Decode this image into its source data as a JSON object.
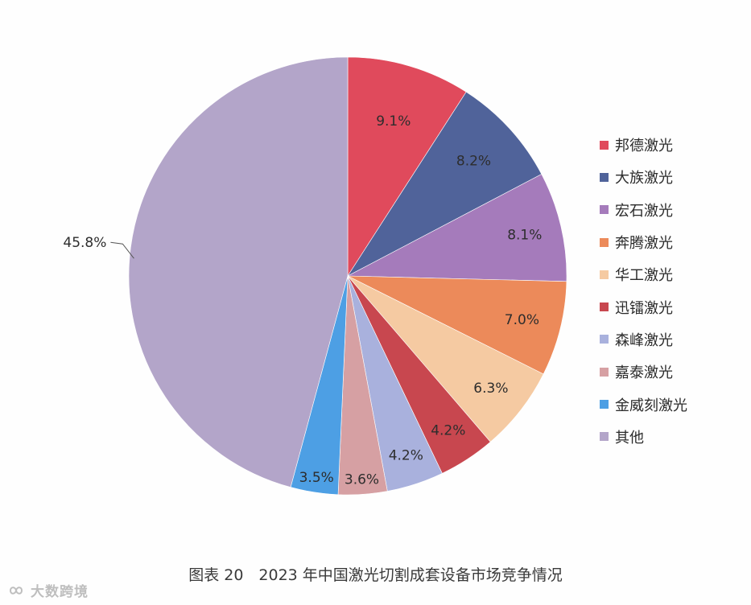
{
  "chart_data": {
    "type": "pie",
    "title": "",
    "caption": "图表 20　2023 年中国激光切割成套设备市场竞争情况",
    "categories": [
      "邦德激光",
      "大族激光",
      "宏石激光",
      "奔腾激光",
      "华工激光",
      "迅镭激光",
      "森峰激光",
      "嘉泰激光",
      "金威刻激光",
      "其他"
    ],
    "values": [
      9.1,
      8.2,
      8.1,
      7.0,
      6.3,
      4.2,
      4.2,
      3.6,
      3.5,
      45.8
    ],
    "value_labels": [
      "9.1%",
      "8.2%",
      "8.1%",
      "7.0%",
      "6.3%",
      "4.2%",
      "4.2%",
      "3.6%",
      "3.5%",
      "45.8%"
    ],
    "colors": [
      "#e04a5c",
      "#50639a",
      "#a57bbb",
      "#ec8a5a",
      "#f5caa2",
      "#c8474f",
      "#a9b1dd",
      "#d6a0a3",
      "#4d9fe4",
      "#b3a5c9"
    ],
    "start_angle": "12 o'clock",
    "direction": "clockwise",
    "legend_position": "right"
  },
  "watermark": {
    "icon": "infinity-logo-icon",
    "text": "大数跨境"
  }
}
